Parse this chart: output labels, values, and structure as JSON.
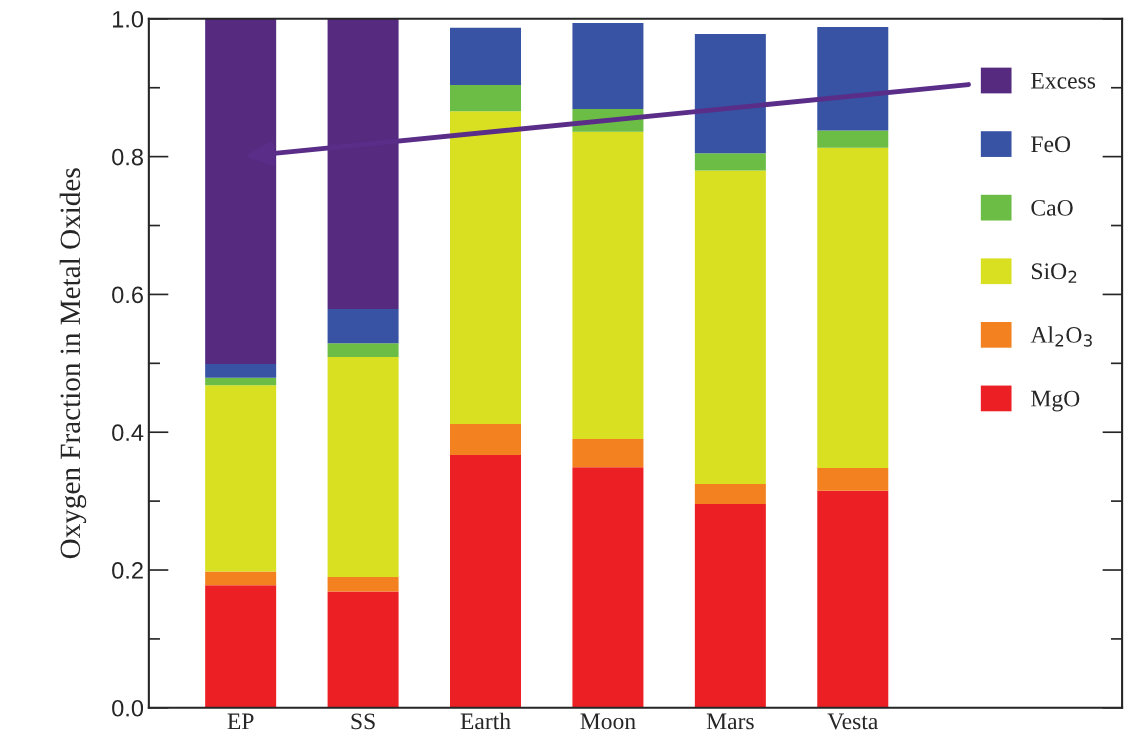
{
  "chart_data": {
    "type": "bar",
    "stacked": true,
    "ylabel": "Oxygen Fraction in Metal Oxides",
    "categories": [
      "EP",
      "SS",
      "Earth",
      "Moon",
      "Mars",
      "Vesta"
    ],
    "series": [
      {
        "name": "MgO",
        "color": "#ec2024",
        "values": [
          0.178,
          0.169,
          0.367,
          0.349,
          0.296,
          0.315
        ]
      },
      {
        "name": "Al$_{2}$O$_{3}$",
        "color": "#f48120",
        "values": [
          0.02,
          0.021,
          0.045,
          0.041,
          0.029,
          0.033
        ]
      },
      {
        "name": "SiO$_{2}$",
        "color": "#d9e021",
        "values": [
          0.27,
          0.319,
          0.454,
          0.446,
          0.455,
          0.465
        ]
      },
      {
        "name": "CaO",
        "color": "#6cbd45",
        "values": [
          0.011,
          0.02,
          0.038,
          0.033,
          0.025,
          0.025
        ]
      },
      {
        "name": "FeO",
        "color": "#3853a4",
        "values": [
          0.02,
          0.05,
          0.083,
          0.125,
          0.173,
          0.15
        ]
      },
      {
        "name": "Excess",
        "color": "#552a7f",
        "values": [
          0.501,
          0.421,
          null,
          null,
          null,
          null
        ]
      }
    ],
    "ylim": [
      0,
      1.0
    ],
    "yticks": [
      {
        "value": 0.0,
        "label": "0.0"
      },
      {
        "value": 0.2,
        "label": "0.2"
      },
      {
        "value": 0.4,
        "label": "0.4"
      },
      {
        "value": 0.6,
        "label": "0.6"
      },
      {
        "value": 0.8,
        "label": "0.8"
      },
      {
        "value": 1.0,
        "label": "1.0"
      }
    ],
    "legend": "top right",
    "grid": false
  }
}
